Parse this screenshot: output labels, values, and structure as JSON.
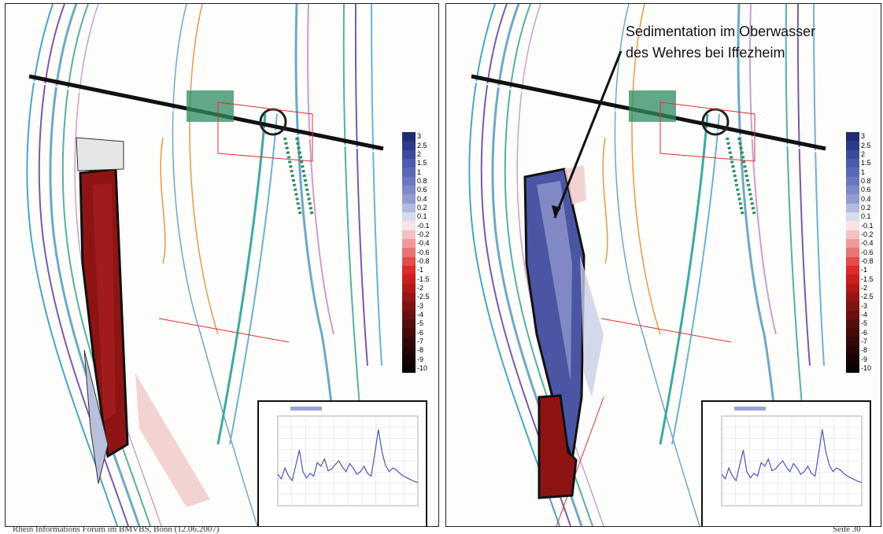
{
  "maps": [
    {
      "id": "left",
      "description_label": "",
      "colors": {
        "blob_primary": "#8e1414",
        "blob_secondary": "#b8c0dc"
      }
    },
    {
      "id": "right",
      "annotation_lines": [
        "Sedimentation im Oberwasser",
        "des Wehres bei Iffezheim"
      ],
      "colors": {
        "blob_primary": "#4b55a3",
        "blob_secondary": "#8e1414"
      }
    }
  ],
  "legend": {
    "labels": [
      "3",
      "2.5",
      "2",
      "1.5",
      "1",
      "0.8",
      "0.6",
      "0.4",
      "0.2",
      "0.1",
      "-0.1",
      "-0.2",
      "-0.4",
      "-0.6",
      "-0.8",
      "-1",
      "-1.5",
      "-2",
      "-2.5",
      "-3",
      "-4",
      "-5",
      "-6",
      "-7",
      "-8",
      "-9",
      "-10"
    ],
    "colors": [
      "#1f2c6e",
      "#2b3b8a",
      "#3a4b9e",
      "#4a5aad",
      "#5b68b6",
      "#6c78be",
      "#7e89c7",
      "#929ccf",
      "#b3bbdd",
      "#d6dbee",
      "#fbe3e3",
      "#f4c1c1",
      "#ef9b9b",
      "#e87474",
      "#e24c4c",
      "#dd2a2a",
      "#c91f1f",
      "#b01a1a",
      "#961616",
      "#7f1313",
      "#6a1010",
      "#560d0d",
      "#430b0b",
      "#330808",
      "#240606",
      "#170404",
      "#0c0202"
    ]
  },
  "inset_chart": {
    "series_color": "#4a55b8",
    "values": [
      0.35,
      0.3,
      0.42,
      0.33,
      0.28,
      0.45,
      0.62,
      0.38,
      0.31,
      0.36,
      0.33,
      0.48,
      0.44,
      0.52,
      0.39,
      0.41,
      0.46,
      0.5,
      0.43,
      0.38,
      0.47,
      0.42,
      0.35,
      0.38,
      0.44,
      0.36,
      0.33,
      0.58,
      0.85,
      0.6,
      0.45,
      0.38,
      0.42,
      0.4,
      0.36,
      0.33,
      0.31,
      0.29,
      0.27,
      0.26
    ]
  },
  "footer": {
    "left": "Rhein Informations Forum im BMVBS, Bonn (12.06.2007)",
    "right": "Seite 30"
  }
}
